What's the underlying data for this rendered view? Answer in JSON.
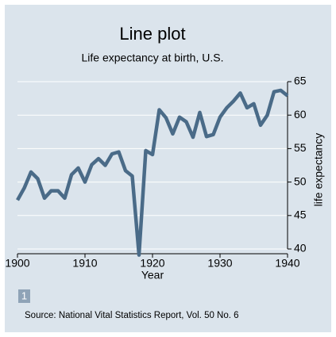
{
  "chart_data": {
    "type": "line",
    "title": "Line plot",
    "subtitle": "Life expectancy at birth, U.S.",
    "x_label": "Year",
    "y_label": "life expectancy",
    "x": [
      1900,
      1901,
      1902,
      1903,
      1904,
      1905,
      1906,
      1907,
      1908,
      1909,
      1910,
      1911,
      1912,
      1913,
      1914,
      1915,
      1916,
      1917,
      1918,
      1919,
      1920,
      1921,
      1922,
      1923,
      1924,
      1925,
      1926,
      1927,
      1928,
      1929,
      1930,
      1931,
      1932,
      1933,
      1934,
      1935,
      1936,
      1937,
      1938,
      1939,
      1940
    ],
    "series": [
      {
        "color": "#4a6b88",
        "values": [
          47.3,
          49.1,
          51.5,
          50.5,
          47.6,
          48.7,
          48.7,
          47.6,
          51.1,
          52.1,
          50.0,
          52.6,
          53.5,
          52.5,
          54.2,
          54.5,
          51.7,
          50.9,
          39.1,
          54.7,
          54.1,
          60.8,
          59.6,
          57.2,
          59.7,
          59.0,
          56.7,
          60.4,
          56.8,
          57.1,
          59.7,
          61.1,
          62.1,
          63.3,
          61.1,
          61.7,
          58.5,
          60.0,
          63.5,
          63.7,
          62.9
        ]
      }
    ],
    "xlim": [
      1900,
      1940
    ],
    "xticks": [
      1900,
      1910,
      1920,
      1930,
      1940
    ],
    "ylim": [
      40,
      65
    ],
    "yticks": [
      40,
      45,
      50,
      55,
      60,
      65
    ],
    "grid": true,
    "note_marker": "1",
    "caption": "Source:  National Vital Statistics Report, Vol. 50 No. 6"
  }
}
